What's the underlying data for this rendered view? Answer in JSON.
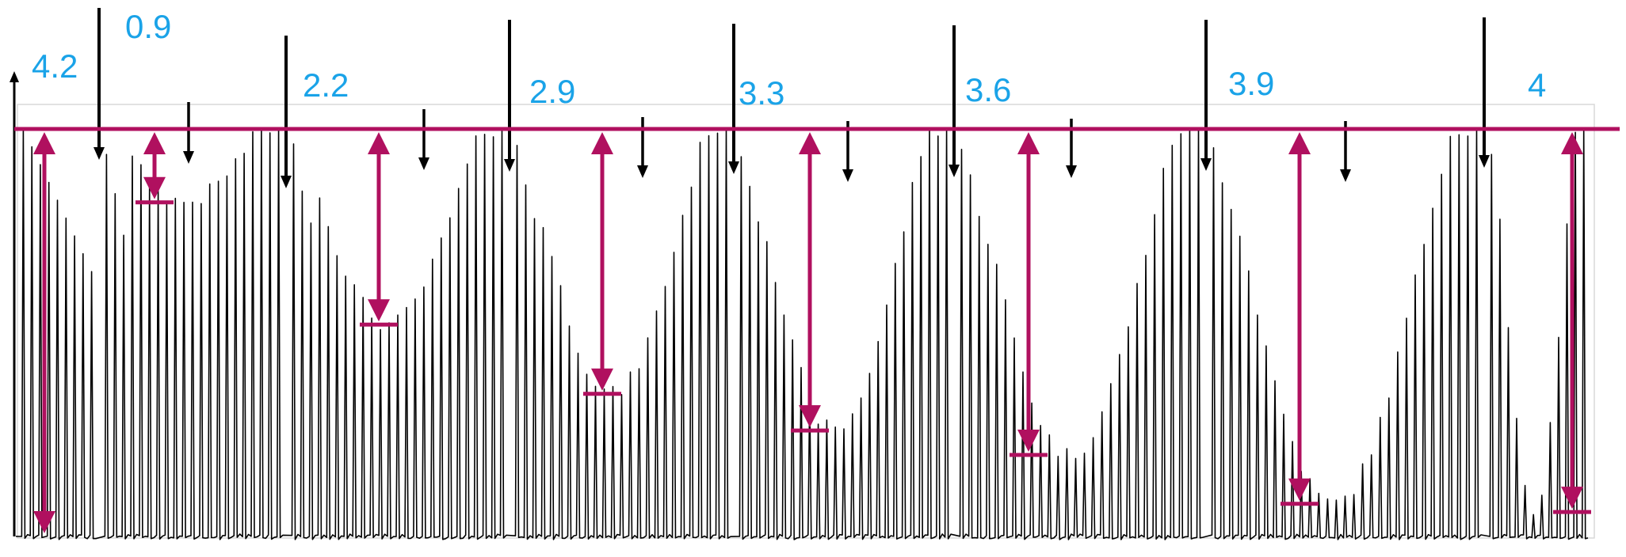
{
  "chart_data": {
    "type": "line",
    "title": "",
    "xlabel": "",
    "ylabel": "",
    "grid": false,
    "legend": "none",
    "colors": {
      "trace": "#000000",
      "annotation": "#b0105f",
      "label": "#1aa3e8",
      "frame": "#d9d9d9"
    },
    "reference_level": 1.0,
    "stimulus_values": [
      "4.2",
      "0.9",
      "2.2",
      "2.9",
      "3.3",
      "3.6",
      "3.9",
      "4"
    ],
    "groups": [
      {
        "label": "4.2",
        "amplitude_ratio": 1.0,
        "valley_ratio": 0.0
      },
      {
        "label": "0.9",
        "amplitude_ratio": 0.18,
        "valley_ratio": 0.82
      },
      {
        "label": "2.2",
        "amplitude_ratio": 0.48,
        "valley_ratio": 0.52
      },
      {
        "label": "2.9",
        "amplitude_ratio": 0.65,
        "valley_ratio": 0.35
      },
      {
        "label": "3.3",
        "amplitude_ratio": 0.74,
        "valley_ratio": 0.26
      },
      {
        "label": "3.6",
        "amplitude_ratio": 0.8,
        "valley_ratio": 0.2
      },
      {
        "label": "3.9",
        "amplitude_ratio": 0.92,
        "valley_ratio": 0.08
      },
      {
        "label": "4",
        "amplitude_ratio": 0.94,
        "valley_ratio": 0.06
      }
    ]
  }
}
